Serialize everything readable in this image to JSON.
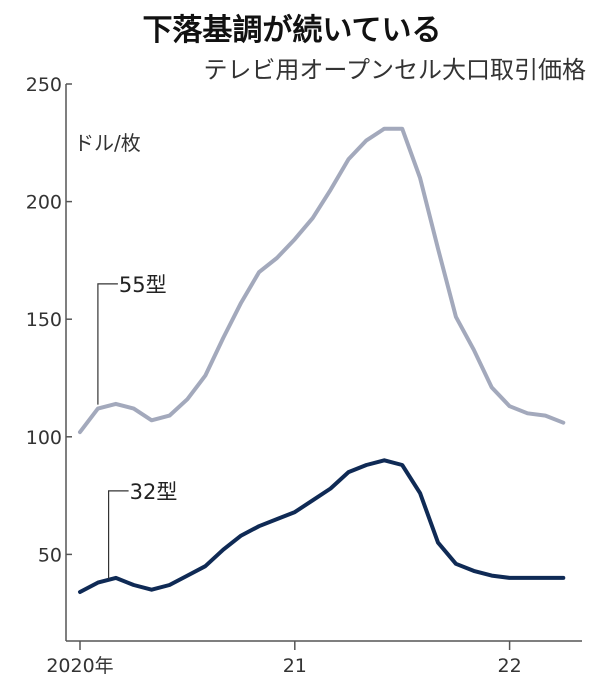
{
  "chart_data": {
    "type": "line",
    "title": "下落基調が続いている",
    "subtitle": "テレビ用オープンセル大口取引価格",
    "unit_label": "ドル/枚",
    "ylim": [
      0,
      250
    ],
    "yticks": [
      50,
      100,
      150,
      200,
      250
    ],
    "xlim": [
      0,
      27
    ],
    "xticks": [
      {
        "x": 0,
        "label": "2020年"
      },
      {
        "x": 12,
        "label": "21"
      },
      {
        "x": 24,
        "label": "22"
      }
    ],
    "grid": false,
    "colors": {
      "s55": "#a3a9bc",
      "s32": "#0f2a55",
      "axis": "#555555"
    },
    "series": [
      {
        "name": "55型",
        "label_at": {
          "x": 1,
          "y": 165
        },
        "x": [
          0,
          1,
          2,
          3,
          4,
          5,
          6,
          7,
          8,
          9,
          10,
          11,
          12,
          13,
          14,
          15,
          16,
          17,
          18,
          19,
          20,
          21,
          22,
          23,
          24,
          25,
          26,
          27
        ],
        "y": [
          102,
          112,
          114,
          112,
          107,
          109,
          116,
          126,
          142,
          157,
          170,
          176,
          184,
          193,
          205,
          218,
          226,
          231,
          231,
          210,
          180,
          151,
          137,
          121,
          113,
          110,
          109,
          106
        ]
      },
      {
        "name": "32型",
        "label_at": {
          "x": 1.6,
          "y": 77
        },
        "x": [
          0,
          1,
          2,
          3,
          4,
          5,
          6,
          7,
          8,
          9,
          10,
          11,
          12,
          13,
          14,
          15,
          16,
          17,
          18,
          19,
          20,
          21,
          22,
          23,
          24,
          25,
          26,
          27
        ],
        "y": [
          34,
          38,
          40,
          37,
          35,
          37,
          41,
          45,
          52,
          58,
          62,
          65,
          68,
          73,
          78,
          85,
          88,
          90,
          88,
          76,
          55,
          46,
          43,
          41,
          40,
          40,
          40,
          40
        ]
      }
    ]
  }
}
